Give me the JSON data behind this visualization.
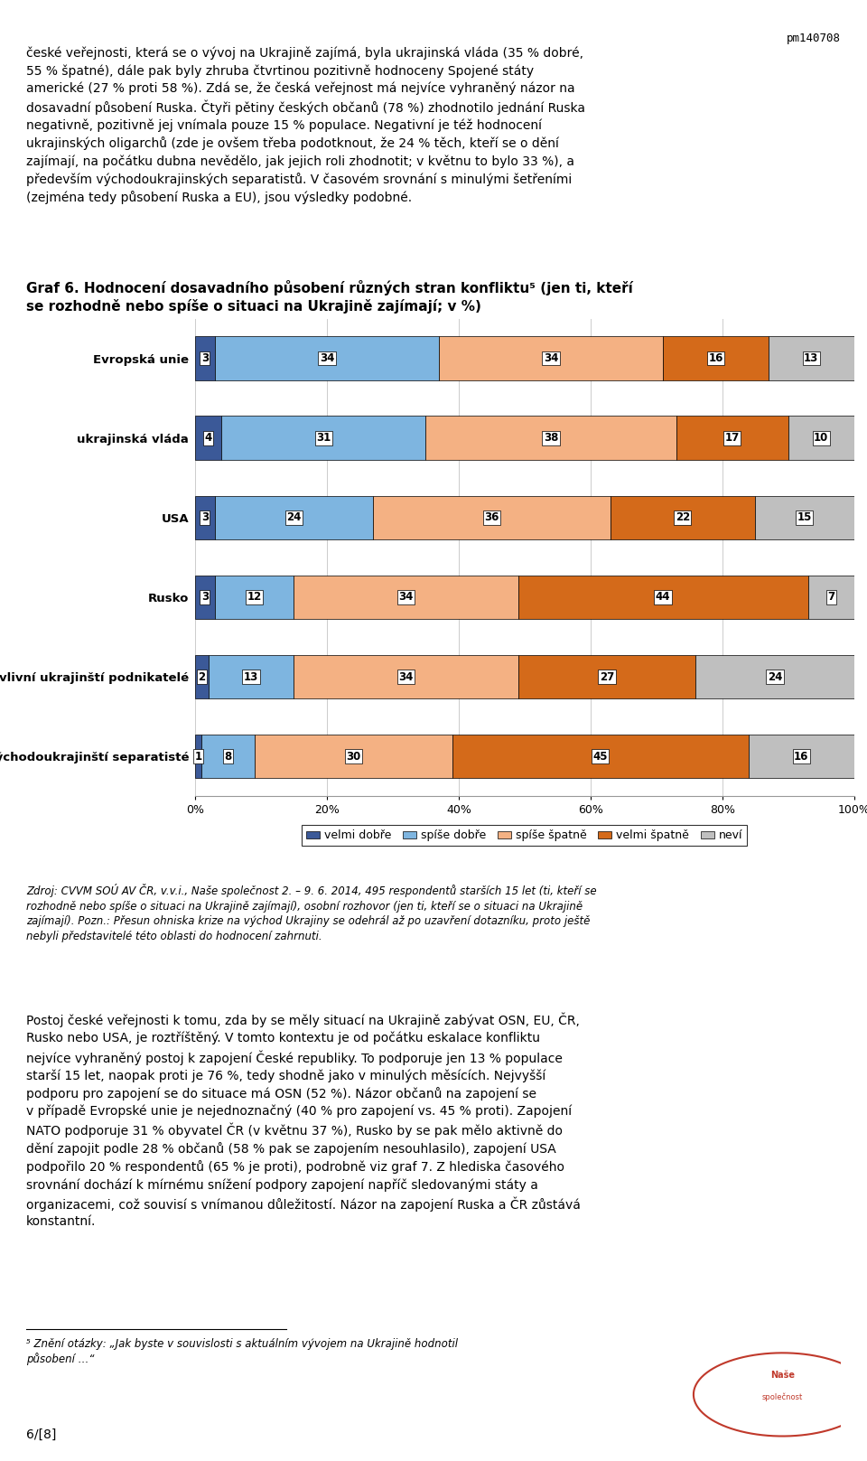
{
  "header_text": "pm140708",
  "categories": [
    "Evropská unie",
    "ukrajinská vláda",
    "USA",
    "Rusko",
    "vlivní ukrajinští podnikatelé",
    "východoukrajinští separatisté"
  ],
  "data": [
    [
      3,
      34,
      34,
      16,
      13
    ],
    [
      4,
      31,
      38,
      17,
      10
    ],
    [
      3,
      24,
      36,
      22,
      15
    ],
    [
      3,
      12,
      34,
      44,
      7
    ],
    [
      2,
      13,
      34,
      27,
      24
    ],
    [
      1,
      8,
      30,
      45,
      16
    ]
  ],
  "colors": [
    "#3b5998",
    "#7eb5e0",
    "#f4b183",
    "#d46a1a",
    "#bfbfbf"
  ],
  "legend_labels": [
    "velmi dobře",
    "spíše dobře",
    "spíše špatně",
    "velmi špatně",
    "neví"
  ],
  "page_text": "6/[8]",
  "bg_color": "#ffffff",
  "chart_bg": "#ffffff",
  "bar_height": 0.55,
  "bar_edgecolor": "#000000",
  "grid_color": "#cccccc",
  "text_color": "#000000"
}
